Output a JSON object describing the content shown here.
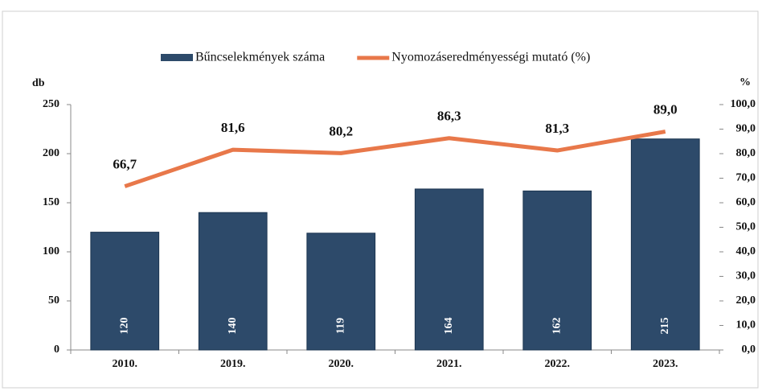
{
  "chart_data": {
    "type": "bar",
    "y_label": "db",
    "y2_label": "%",
    "categories": [
      "2010.",
      "2019.",
      "2020.",
      "2021.",
      "2022.",
      "2023."
    ],
    "series": [
      {
        "name": "Bűncselekmények száma",
        "type": "bar",
        "color": "#2d4a6a",
        "values": [
          120,
          140,
          119,
          164,
          162,
          215
        ]
      },
      {
        "name": "Nyomozáseredményességi mutató (%)",
        "type": "line",
        "axis": "y2",
        "color": "#e8784a",
        "values": [
          66.7,
          81.6,
          80.2,
          86.3,
          81.3,
          89.0
        ],
        "value_labels": [
          "66,7",
          "81,6",
          "80,2",
          "86,3",
          "81,3",
          "89,0"
        ]
      }
    ],
    "ylim": [
      0,
      250
    ],
    "yticks": [
      0,
      50,
      100,
      150,
      200,
      250
    ],
    "y2lim": [
      0,
      100
    ],
    "y2ticks": [
      {
        "value": 0,
        "label": "0,0"
      },
      {
        "value": 10,
        "label": "10,0"
      },
      {
        "value": 20,
        "label": "20,0"
      },
      {
        "value": 30,
        "label": "30,0"
      },
      {
        "value": 40,
        "label": "40,0"
      },
      {
        "value": 50,
        "label": "50,0"
      },
      {
        "value": 60,
        "label": "60,0"
      },
      {
        "value": 70,
        "label": "70,0"
      },
      {
        "value": 80,
        "label": "80,0"
      },
      {
        "value": 90,
        "label": "90,0"
      },
      {
        "value": 100,
        "label": "100,0"
      }
    ]
  }
}
